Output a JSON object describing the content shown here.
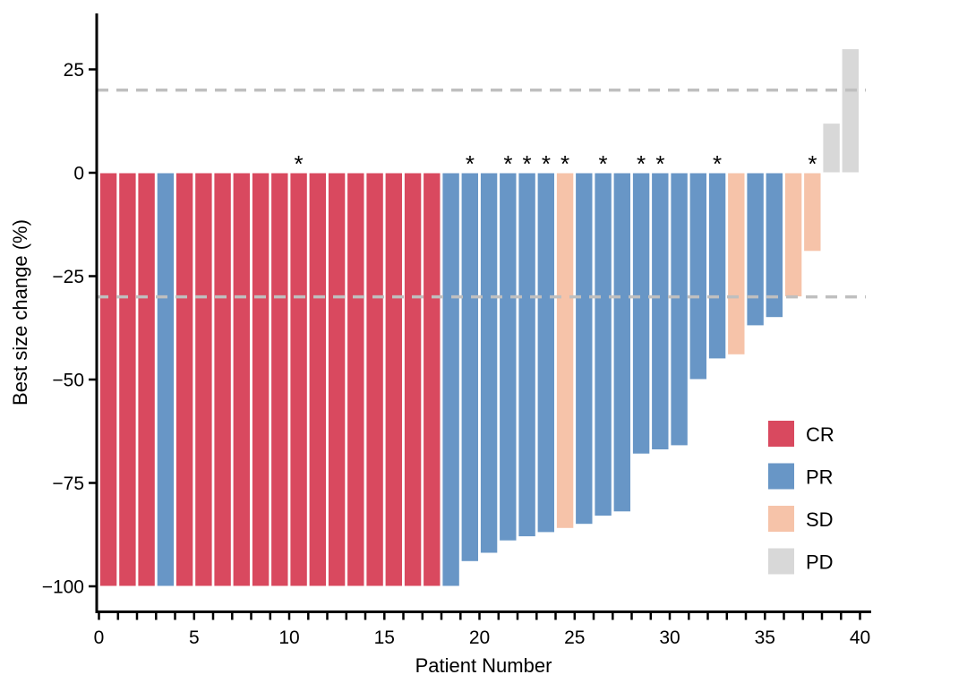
{
  "chart_data": {
    "type": "bar",
    "title": "",
    "xlabel": "Patient Number",
    "ylabel": "Best size change (%)",
    "grid": false,
    "xlim": [
      0,
      40.6
    ],
    "ylim": [
      -107,
      38
    ],
    "xticks": [
      0,
      5,
      10,
      15,
      20,
      25,
      30,
      35,
      40
    ],
    "minor_xtick_every": 1,
    "yticks": [
      25,
      0,
      -25,
      -50,
      -75,
      -100
    ],
    "reference_lines": [
      20,
      -30
    ],
    "reference_line_style": "dashed",
    "annotation_symbol": "*",
    "legend_position": "inside-right",
    "legend": [
      {
        "label": "CR",
        "color": "#d9495f"
      },
      {
        "label": "PR",
        "color": "#6896c6"
      },
      {
        "label": "SD",
        "color": "#f6c3a9"
      },
      {
        "label": "PD",
        "color": "#d8d8d8"
      }
    ],
    "colors": {
      "CR": "#d9495f",
      "PR": "#6896c6",
      "SD": "#f6c3a9",
      "PD": "#d8d8d8",
      "reference": "#bfbfbf"
    },
    "patients": [
      {
        "n": 1,
        "value": -100,
        "response": "CR",
        "star": false
      },
      {
        "n": 2,
        "value": -100,
        "response": "CR",
        "star": false
      },
      {
        "n": 3,
        "value": -100,
        "response": "CR",
        "star": false
      },
      {
        "n": 4,
        "value": -100,
        "response": "PR",
        "star": false
      },
      {
        "n": 5,
        "value": -100,
        "response": "CR",
        "star": false
      },
      {
        "n": 6,
        "value": -100,
        "response": "CR",
        "star": false
      },
      {
        "n": 7,
        "value": -100,
        "response": "CR",
        "star": false
      },
      {
        "n": 8,
        "value": -100,
        "response": "CR",
        "star": false
      },
      {
        "n": 9,
        "value": -100,
        "response": "CR",
        "star": false
      },
      {
        "n": 10,
        "value": -100,
        "response": "CR",
        "star": false
      },
      {
        "n": 11,
        "value": -100,
        "response": "CR",
        "star": true
      },
      {
        "n": 12,
        "value": -100,
        "response": "CR",
        "star": false
      },
      {
        "n": 13,
        "value": -100,
        "response": "CR",
        "star": false
      },
      {
        "n": 14,
        "value": -100,
        "response": "CR",
        "star": false
      },
      {
        "n": 15,
        "value": -100,
        "response": "CR",
        "star": false
      },
      {
        "n": 16,
        "value": -100,
        "response": "CR",
        "star": false
      },
      {
        "n": 17,
        "value": -100,
        "response": "CR",
        "star": false
      },
      {
        "n": 18,
        "value": -100,
        "response": "CR",
        "star": false
      },
      {
        "n": 19,
        "value": -100,
        "response": "PR",
        "star": false
      },
      {
        "n": 20,
        "value": -94,
        "response": "PR",
        "star": true
      },
      {
        "n": 21,
        "value": -92,
        "response": "PR",
        "star": false
      },
      {
        "n": 22,
        "value": -89,
        "response": "PR",
        "star": true
      },
      {
        "n": 23,
        "value": -88,
        "response": "PR",
        "star": true
      },
      {
        "n": 24,
        "value": -87,
        "response": "PR",
        "star": true
      },
      {
        "n": 25,
        "value": -86,
        "response": "SD",
        "star": true
      },
      {
        "n": 26,
        "value": -85,
        "response": "PR",
        "star": false
      },
      {
        "n": 27,
        "value": -83,
        "response": "PR",
        "star": true
      },
      {
        "n": 28,
        "value": -82,
        "response": "PR",
        "star": false
      },
      {
        "n": 29,
        "value": -68,
        "response": "PR",
        "star": true
      },
      {
        "n": 30,
        "value": -67,
        "response": "PR",
        "star": true
      },
      {
        "n": 31,
        "value": -66,
        "response": "PR",
        "star": false
      },
      {
        "n": 32,
        "value": -50,
        "response": "PR",
        "star": false
      },
      {
        "n": 33,
        "value": -45,
        "response": "PR",
        "star": true
      },
      {
        "n": 34,
        "value": -44,
        "response": "SD",
        "star": false
      },
      {
        "n": 35,
        "value": -37,
        "response": "PR",
        "star": false
      },
      {
        "n": 36,
        "value": -35,
        "response": "PR",
        "star": false
      },
      {
        "n": 37,
        "value": -30,
        "response": "SD",
        "star": false
      },
      {
        "n": 38,
        "value": -19,
        "response": "SD",
        "star": true
      },
      {
        "n": 39,
        "value": 12,
        "response": "PD",
        "star": false
      },
      {
        "n": 40,
        "value": 30,
        "response": "PD",
        "star": false
      }
    ]
  }
}
